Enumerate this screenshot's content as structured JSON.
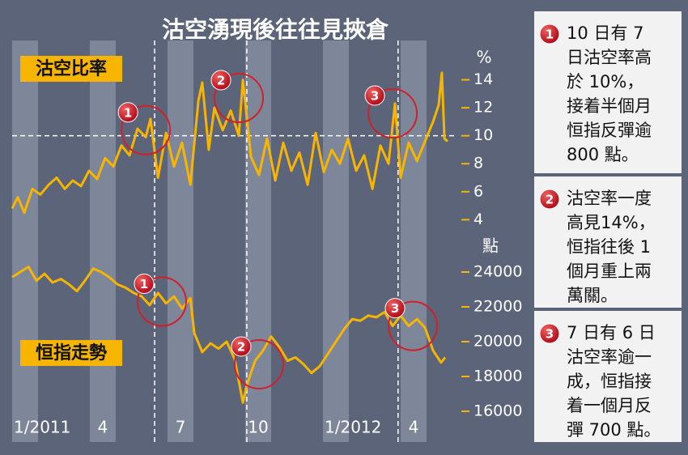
{
  "title": "沽空湧現後往往見挾倉",
  "chart_data": [
    {
      "type": "line",
      "y_unit": "%",
      "x": [
        0,
        0.22,
        0.47,
        0.78,
        1.09,
        1.41,
        1.72,
        2.03,
        2.34,
        2.66,
        2.97,
        3.28,
        3.59,
        3.91,
        4.22,
        4.53,
        4.84,
        5.16,
        5.34,
        5.63,
        5.94,
        6.25,
        6.56,
        6.88,
        7.19,
        7.34,
        7.59,
        7.81,
        8.13,
        8.44,
        8.75,
        8.91,
        9.22,
        9.53,
        9.84,
        10.16,
        10.47,
        10.78,
        11.09,
        11.41,
        11.72,
        12.03,
        12.34,
        12.66,
        12.97,
        13.28,
        13.59,
        13.91,
        14.22,
        14.53,
        14.78,
        15,
        15.31,
        15.63,
        15.94,
        16.25,
        16.47,
        16.59,
        16.69,
        16.81
      ],
      "series": [
        {
          "name": "沽空比率",
          "color": "#f7b500",
          "values": [
            4.8,
            5.6,
            4.5,
            6.2,
            5.8,
            6.5,
            7.0,
            6.2,
            6.8,
            6.4,
            7.5,
            6.9,
            8.4,
            7.8,
            9.3,
            8.6,
            10.5,
            9.9,
            11.2,
            7.0,
            10.2,
            7.8,
            9.5,
            6.5,
            12.5,
            13.8,
            9.0,
            12.0,
            10.4,
            11.8,
            10.0,
            14.0,
            8.5,
            7.2,
            9.8,
            6.8,
            9.5,
            7.5,
            8.8,
            6.5,
            10.2,
            7.4,
            9.0,
            8.0,
            9.8,
            7.5,
            8.6,
            6.2,
            9.3,
            8.0,
            12.3,
            7.0,
            9.5,
            8.2,
            9.6,
            11.0,
            12.2,
            14.5,
            9.8,
            9.6
          ]
        }
      ],
      "xlim": [
        0,
        17
      ],
      "ylim": [
        3.5,
        16
      ],
      "yticks": [
        14,
        12,
        10,
        8,
        6,
        4
      ],
      "reference_line": 10,
      "highlight_x": [
        5.5,
        9.06,
        14.9
      ],
      "markers": [
        {
          "label": "1",
          "x": 5.16,
          "y": 10.4
        },
        {
          "label": "2",
          "x": 8.75,
          "y": 12.7
        },
        {
          "label": "3",
          "x": 14.69,
          "y": 11.6
        }
      ]
    },
    {
      "type": "line",
      "y_unit": "點",
      "x": [
        0,
        0.31,
        0.63,
        0.94,
        1.25,
        1.56,
        1.88,
        2.19,
        2.5,
        2.81,
        3.13,
        3.44,
        3.75,
        4.06,
        4.38,
        4.69,
        5,
        5.31,
        5.63,
        5.94,
        6.25,
        6.56,
        6.88,
        7.03,
        7.34,
        7.66,
        7.97,
        8.28,
        8.59,
        8.91,
        9.06,
        9.38,
        9.69,
        10,
        10.31,
        10.63,
        10.94,
        11.25,
        11.56,
        11.88,
        12.19,
        12.5,
        12.81,
        13.13,
        13.44,
        13.75,
        14.06,
        14.38,
        14.69,
        15,
        15.31,
        15.63,
        15.94,
        16.25,
        16.56,
        16.72
      ],
      "series": [
        {
          "name": "恒指走勢",
          "color": "#f7b500",
          "values": [
            23700,
            24000,
            24300,
            23500,
            23900,
            23400,
            23600,
            23300,
            22900,
            23500,
            24200,
            24000,
            23700,
            23300,
            23100,
            22800,
            22600,
            22100,
            22800,
            22200,
            22600,
            21900,
            22500,
            20500,
            19400,
            19900,
            19600,
            20000,
            19000,
            16500,
            17500,
            18900,
            19500,
            20300,
            19700,
            18900,
            19100,
            18700,
            18200,
            18600,
            19300,
            20000,
            20700,
            21300,
            21200,
            21500,
            21400,
            21700,
            20900,
            21500,
            20900,
            21300,
            20800,
            19500,
            18800,
            19100
          ]
        }
      ],
      "xlim": [
        0,
        17
      ],
      "ylim": [
        15500,
        25000
      ],
      "yticks": [
        24000,
        22000,
        20000,
        18000,
        16000
      ],
      "xticks": [
        {
          "value": 0,
          "label": "1/2011"
        },
        {
          "value": 3,
          "label": "4"
        },
        {
          "value": 6,
          "label": "7"
        },
        {
          "value": 9,
          "label": "10"
        },
        {
          "value": 12,
          "label": "1/2012"
        },
        {
          "value": 15,
          "label": "4"
        }
      ],
      "markers": [
        {
          "label": "1",
          "x": 5.78,
          "y": 22300
        },
        {
          "label": "2",
          "x": 9.53,
          "y": 18700
        },
        {
          "label": "3",
          "x": 15.47,
          "y": 20900
        }
      ]
    }
  ],
  "notes": [
    {
      "number": "1",
      "lines": [
        "10 日有 7",
        "日沽空率高",
        "於 10%，",
        "接着半個月",
        "恒指反彈逾",
        "800 點。"
      ]
    },
    {
      "number": "2",
      "lines": [
        "沽空率一度",
        "高見14%，",
        "恒指往後 1",
        "個月重上兩",
        "萬關。"
      ]
    },
    {
      "number": "3",
      "lines": [
        "7 日有 6 日",
        "沽空率逾一",
        "成，恒指接",
        "着一個月反",
        "彈 700 點。"
      ]
    }
  ]
}
